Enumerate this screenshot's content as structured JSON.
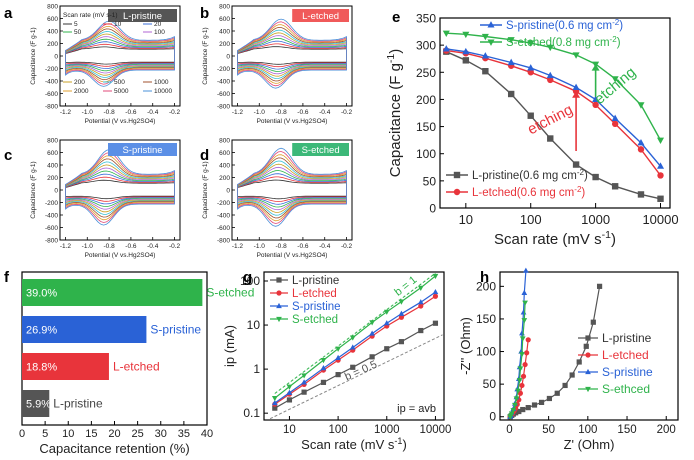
{
  "panels": {
    "a": {
      "letter": "a",
      "tag": "L-pristine",
      "tag_color": "#555555",
      "xlabel": "Potential (V vs.Hg2SO4)",
      "ylabel": "Capacitance (F g-1)"
    },
    "b": {
      "letter": "b",
      "tag": "L-etched",
      "tag_color": "#f05a5a",
      "xlabel": "Potential (V vs.Hg2SO4)",
      "ylabel": "Capacitance (F g-1)"
    },
    "c": {
      "letter": "c",
      "tag": "S-pristine",
      "tag_color": "#5b8fe6",
      "xlabel": "Potential (V vs.Hg2SO4)",
      "ylabel": "Capacitance (F g-1)"
    },
    "d": {
      "letter": "d",
      "tag": "S-etched",
      "tag_color": "#3cb878",
      "xlabel": "Potential (V vs.Hg2SO4)",
      "ylabel": "Capacitance (F g-1)"
    },
    "e": {
      "letter": "e"
    },
    "f": {
      "letter": "f"
    },
    "g": {
      "letter": "g"
    },
    "h": {
      "letter": "h"
    }
  },
  "chart_data": [
    {
      "id": "cv-panels",
      "type": "line",
      "x_ticks": [
        "-1.2",
        "-1.0",
        "-0.8",
        "-0.6",
        "-0.4",
        "-0.2"
      ],
      "xlim": [
        -1.25,
        -0.15
      ],
      "y_ticks": [
        800,
        600,
        400,
        200,
        0,
        -200,
        -400,
        -600,
        -800
      ],
      "ylim": [
        -800,
        800
      ],
      "legend_title": "Scan rate (mV s-1)",
      "scan_rates": [
        "5",
        "10",
        "20",
        "50",
        "100",
        "200",
        "500",
        "1000",
        "2000",
        "5000",
        "10000"
      ],
      "colors": [
        "#333333",
        "#e8343b",
        "#3b6fd9",
        "#2fb34b",
        "#b066d6",
        "#c9a227",
        "#39c0d6",
        "#a0522d",
        "#e0a030",
        "#e04878",
        "#4a90d9"
      ],
      "peak_amplitude": {
        "a": 560,
        "b": 620,
        "c": 720,
        "d": 760
      }
    },
    {
      "id": "e",
      "type": "line",
      "x": [
        5,
        10,
        20,
        50,
        100,
        200,
        500,
        1000,
        2000,
        5000,
        10000
      ],
      "xscale": "log",
      "xlim": [
        4,
        14000
      ],
      "ylim": [
        0,
        350
      ],
      "y_ticks": [
        0,
        50,
        100,
        150,
        200,
        250,
        300,
        350
      ],
      "x_ticks": [
        "10",
        "100",
        "1000",
        "10000"
      ],
      "xlabel": "Scan rate (mV s-1)",
      "ylabel": "Capacitance (F g-1)",
      "series": [
        {
          "name": "L-pristine(0.6 mg cm-2)",
          "color": "#555555",
          "marker": "square",
          "values": [
            288,
            272,
            252,
            210,
            170,
            128,
            80,
            57,
            40,
            25,
            17
          ]
        },
        {
          "name": "L-etched(0.6 mg cm-2)",
          "color": "#e8343b",
          "marker": "circle",
          "values": [
            290,
            285,
            276,
            262,
            250,
            236,
            215,
            190,
            155,
            108,
            60
          ]
        },
        {
          "name": "S-pristine(0.6 mg cm-2)",
          "color": "#2a62d6",
          "marker": "triangle-up",
          "values": [
            293,
            288,
            280,
            268,
            258,
            244,
            222,
            200,
            165,
            120,
            77
          ]
        },
        {
          "name": "S-etched(0.8 mg cm-2)",
          "color": "#2fb34b",
          "marker": "triangle-down",
          "values": [
            322,
            320,
            316,
            310,
            304,
            296,
            282,
            265,
            238,
            190,
            125
          ]
        }
      ],
      "annotations": [
        "etching",
        "etching"
      ]
    },
    {
      "id": "f",
      "type": "bar",
      "categories": [
        "L-pristine",
        "L-etched",
        "S-pristine",
        "S-etched"
      ],
      "values": [
        5.9,
        18.8,
        26.9,
        39.0
      ],
      "value_labels": [
        "5.9%",
        "18.8%",
        "26.9%",
        "39.0%"
      ],
      "colors": [
        "#555555",
        "#e8343b",
        "#2a62d6",
        "#2fb34b"
      ],
      "xlim": [
        0,
        40
      ],
      "x_ticks": [
        0,
        5,
        10,
        15,
        20,
        25,
        30,
        35,
        40
      ],
      "xlabel": "Capacitance retention (%)"
    },
    {
      "id": "g",
      "type": "line",
      "x": [
        5,
        10,
        20,
        50,
        100,
        200,
        500,
        1000,
        2000,
        5000,
        10000
      ],
      "xscale": "log",
      "yscale": "log",
      "xlim": [
        3,
        15000
      ],
      "ylim": [
        0.07,
        160
      ],
      "x_ticks": [
        "10",
        "100",
        "1000",
        "10000"
      ],
      "y_ticks": [
        "0.1",
        "1",
        "10",
        "100"
      ],
      "xlabel": "Scan rate (mV s-1)",
      "ylabel": "ip (mA)",
      "series": [
        {
          "name": "L-pristine",
          "color": "#555555",
          "marker": "square",
          "values": [
            0.13,
            0.2,
            0.3,
            0.5,
            0.75,
            1.1,
            1.9,
            2.9,
            4.2,
            7.5,
            11
          ]
        },
        {
          "name": "L-etched",
          "color": "#e8343b",
          "marker": "circle",
          "values": [
            0.16,
            0.27,
            0.45,
            0.95,
            1.6,
            2.7,
            5.6,
            9.5,
            15,
            27,
            45
          ]
        },
        {
          "name": "S-pristine",
          "color": "#2a62d6",
          "marker": "triangle-up",
          "values": [
            0.17,
            0.29,
            0.5,
            1.05,
            1.8,
            3.1,
            6.4,
            11,
            18,
            33,
            56
          ]
        },
        {
          "name": "S-etched",
          "color": "#2fb34b",
          "marker": "triangle-down",
          "values": [
            0.22,
            0.4,
            0.72,
            1.6,
            2.9,
            5.2,
            11.5,
            20,
            34,
            70,
            130
          ]
        }
      ],
      "guides": [
        {
          "label": "b = 1"
        },
        {
          "label": "b = 0.5"
        }
      ],
      "equation": "ip = avb"
    },
    {
      "id": "h",
      "type": "line",
      "xlim": [
        -12,
        215
      ],
      "ylim": [
        -5,
        222
      ],
      "x_ticks": [
        0,
        50,
        100,
        150,
        200
      ],
      "y_ticks": [
        0,
        50,
        100,
        150,
        200
      ],
      "xlabel": "Z' (Ohm)",
      "ylabel": "-Z'' (Ohm)",
      "series": [
        {
          "name": "L-pristine",
          "color": "#555555",
          "marker": "square",
          "x": [
            1,
            3,
            5,
            8,
            12,
            17,
            24,
            32,
            41,
            51,
            61,
            71,
            80,
            89,
            98,
            107,
            115
          ],
          "y": [
            0,
            2,
            4,
            6,
            8,
            11,
            14,
            18,
            22,
            28,
            36,
            48,
            64,
            84,
            108,
            145,
            200
          ]
        },
        {
          "name": "L-etched",
          "color": "#e8343b",
          "marker": "circle",
          "x": [
            1,
            2,
            4,
            6,
            8,
            10,
            12,
            14,
            16,
            18,
            20,
            22,
            24
          ],
          "y": [
            0,
            2,
            5,
            9,
            13,
            19,
            26,
            36,
            48,
            62,
            80,
            98,
            118
          ]
        },
        {
          "name": "S-pristine",
          "color": "#2a62d6",
          "marker": "triangle-up",
          "x": [
            1,
            2,
            3,
            5,
            7,
            9,
            10,
            12,
            13,
            15,
            16,
            18,
            19,
            21
          ],
          "y": [
            0,
            2,
            6,
            12,
            20,
            30,
            42,
            58,
            76,
            100,
            128,
            160,
            190,
            228
          ]
        },
        {
          "name": "S-ethced",
          "color": "#2fb34b",
          "marker": "triangle-down",
          "x": [
            1,
            2,
            3,
            5,
            7,
            9,
            11,
            13,
            14,
            16,
            17,
            19,
            20
          ],
          "y": [
            0,
            2,
            5,
            10,
            18,
            28,
            40,
            56,
            74,
            96,
            120,
            148,
            175
          ]
        }
      ]
    }
  ]
}
